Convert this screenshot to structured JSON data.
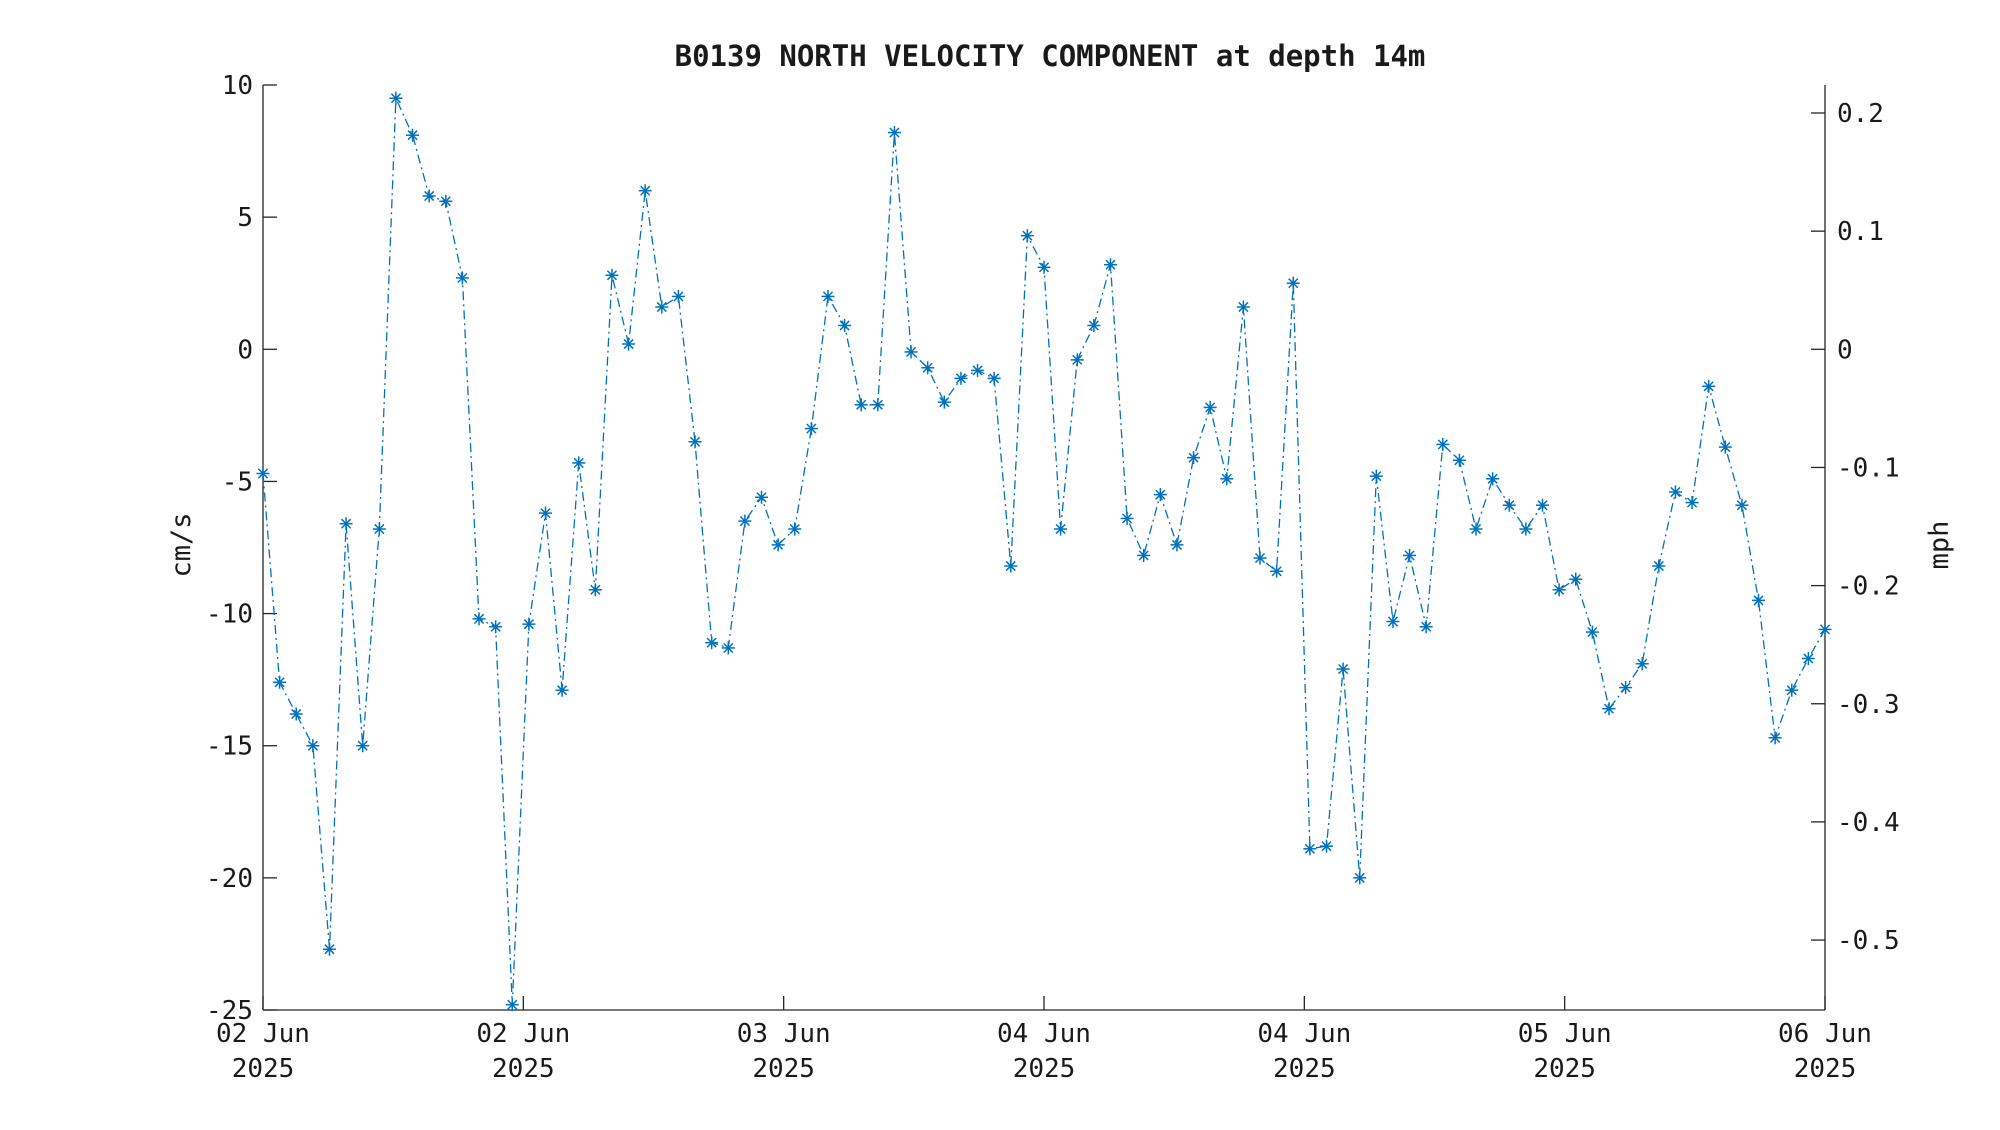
{
  "chart_data": {
    "type": "line",
    "title": "B0139 NORTH VELOCITY COMPONENT at depth 14m",
    "ylabel_left": "cm/s",
    "ylabel_right": "mph",
    "ylim_left": [
      -25,
      10
    ],
    "ylim_right": [
      -0.5592,
      0.2237
    ],
    "left_ticks": [
      {
        "value": 10,
        "label": "10"
      },
      {
        "value": 5,
        "label": "5"
      },
      {
        "value": 0,
        "label": "0"
      },
      {
        "value": -5,
        "label": "-5"
      },
      {
        "value": -10,
        "label": "-10"
      },
      {
        "value": -15,
        "label": "-15"
      },
      {
        "value": -20,
        "label": "-20"
      },
      {
        "value": -25,
        "label": "-25"
      }
    ],
    "right_ticks": [
      {
        "value": 0.2,
        "label": "0.2"
      },
      {
        "value": 0.1,
        "label": "0.1"
      },
      {
        "value": 0,
        "label": "0"
      },
      {
        "value": -0.1,
        "label": "-0.1"
      },
      {
        "value": -0.2,
        "label": "-0.2"
      },
      {
        "value": -0.3,
        "label": "-0.3"
      },
      {
        "value": -0.4,
        "label": "-0.4"
      },
      {
        "value": -0.5,
        "label": "-0.5"
      }
    ],
    "x_ticks": [
      {
        "index": 0,
        "label": [
          "02 Jun",
          "2025"
        ]
      },
      {
        "index": 1,
        "label": [
          "02 Jun",
          "2025"
        ]
      },
      {
        "index": 2,
        "label": [
          "03 Jun",
          "2025"
        ]
      },
      {
        "index": 3,
        "label": [
          "04 Jun",
          "2025"
        ]
      },
      {
        "index": 4,
        "label": [
          "04 Jun",
          "2025"
        ]
      },
      {
        "index": 5,
        "label": [
          "05 Jun",
          "2025"
        ]
      },
      {
        "index": 6,
        "label": [
          "06 Jun",
          "2025"
        ]
      }
    ],
    "grid": false,
    "legend": "none",
    "line_style": "dash-dot",
    "marker": "asterisk",
    "color": "#0072bd",
    "series": [
      {
        "values": [
          -4.7,
          -12.6,
          -13.8,
          -15.0,
          -22.7,
          -6.6,
          -15.0,
          -6.8,
          9.5,
          8.1,
          5.8,
          5.6,
          2.7,
          -10.2,
          -10.5,
          -24.8,
          -10.4,
          -6.2,
          -12.9,
          -4.3,
          -9.1,
          2.8,
          0.2,
          6.0,
          1.6,
          2.0,
          -3.5,
          -11.1,
          -11.3,
          -6.5,
          -5.6,
          -7.4,
          -6.8,
          -3.0,
          2.0,
          0.9,
          -2.1,
          -2.1,
          8.2,
          -0.1,
          -0.7,
          -2.0,
          -1.1,
          -0.8,
          -1.1,
          -8.2,
          4.3,
          3.1,
          -6.8,
          -0.4,
          0.9,
          3.2,
          -6.4,
          -7.8,
          -5.5,
          -7.4,
          -4.1,
          -2.2,
          -4.9,
          1.6,
          -7.9,
          -8.4,
          2.5,
          -18.9,
          -18.8,
          -12.1,
          -20.0,
          -4.8,
          -10.3,
          -7.8,
          -10.5,
          -3.6,
          -4.2,
          -6.8,
          -4.9,
          -5.9,
          -6.8,
          -5.9,
          -9.1,
          -8.7,
          -10.7,
          -13.6,
          -12.8,
          -11.9,
          -8.2,
          -5.4,
          -5.8,
          -1.4,
          -3.7,
          -5.9,
          -9.5,
          -14.7,
          -12.9,
          -11.7,
          -10.6
        ]
      }
    ]
  }
}
